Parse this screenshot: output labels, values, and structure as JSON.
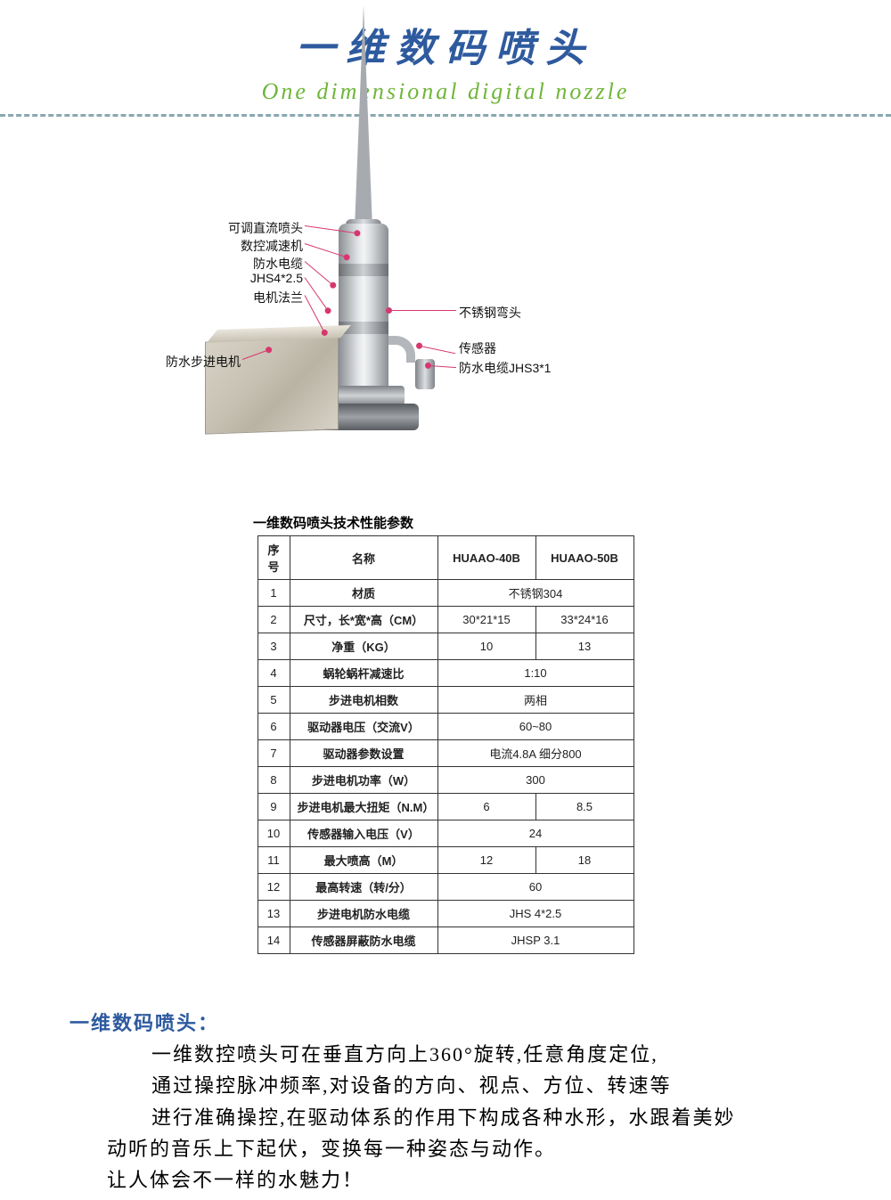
{
  "header": {
    "title_cn": "一维数码喷头",
    "title_en": "One dimensional digital nozzle",
    "title_cn_color": "#2e5a9e",
    "title_en_color": "#6fb638",
    "divider_color": "#8aa8b0"
  },
  "diagram": {
    "left_labels": [
      "可调直流喷头",
      "数控减速机",
      "防水电缆",
      "JHS4*2.5",
      "电机法兰",
      "防水步进电机"
    ],
    "right_labels": [
      "不锈钢弯头",
      "传感器",
      "防水电缆JHS3*1"
    ],
    "lead_color": "#d6386e",
    "metal_gradient": [
      "#8a8e92",
      "#d9dcdf",
      "#f3f4f5"
    ],
    "motor_box_gradient": [
      "#d7d2c6",
      "#c7c1b3",
      "#b9b3a4"
    ]
  },
  "table": {
    "title": "一维数码喷头技术性能参数",
    "headers": [
      "序号",
      "名称",
      "HUAAO-40B",
      "HUAAO-50B"
    ],
    "rows": [
      {
        "idx": "1",
        "name": "材质",
        "span": true,
        "value": "不锈钢304"
      },
      {
        "idx": "2",
        "name": "尺寸，长*宽*高（CM）",
        "v1": "30*21*15",
        "v2": "33*24*16"
      },
      {
        "idx": "3",
        "name": "净重（KG）",
        "v1": "10",
        "v2": "13"
      },
      {
        "idx": "4",
        "name": "蜗轮蜗杆减速比",
        "span": true,
        "value": "1:10"
      },
      {
        "idx": "5",
        "name": "步进电机相数",
        "span": true,
        "value": "两相"
      },
      {
        "idx": "6",
        "name": "驱动器电压（交流V）",
        "span": true,
        "value": "60~80"
      },
      {
        "idx": "7",
        "name": "驱动器参数设置",
        "span": true,
        "value": "电流4.8A 细分800"
      },
      {
        "idx": "8",
        "name": "步进电机功率（W）",
        "span": true,
        "value": "300"
      },
      {
        "idx": "9",
        "name": "步进电机最大扭矩（N.M）",
        "v1": "6",
        "v2": "8.5"
      },
      {
        "idx": "10",
        "name": "传感器输入电压（V）",
        "span": true,
        "value": "24"
      },
      {
        "idx": "11",
        "name": "最大喷高（M）",
        "v1": "12",
        "v2": "18"
      },
      {
        "idx": "12",
        "name": "最高转速（转/分）",
        "span": true,
        "value": "60"
      },
      {
        "idx": "13",
        "name": "步进电机防水电缆",
        "span": true,
        "value": "JHS 4*2.5"
      },
      {
        "idx": "14",
        "name": "传感器屏蔽防水电缆",
        "span": true,
        "value": "JHSP 3.1"
      }
    ],
    "border_color": "#333333",
    "font_size_pt": 10
  },
  "description": {
    "title": "一维数码喷头：",
    "body_lines": [
      "一维数控喷头可在垂直方向上360°旋转,任意角度定位,",
      "通过操控脉冲频率,对设备的方向、视点、方位、转速等",
      "进行准确操控,在驱动体系的作用下构成各种水形，水跟着美妙",
      "动听的音乐上下起伏，变换每一种姿态与动作。",
      "让人体会不一样的水魅力！"
    ],
    "title_color": "#2e5a9e",
    "font_size_pt": 16
  }
}
